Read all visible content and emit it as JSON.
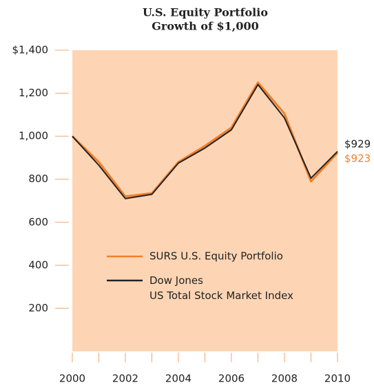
{
  "chart_data": {
    "type": "line",
    "title": "U.S. Equity Portfolio",
    "subtitle": "Growth of $1,000",
    "x": [
      2000,
      2001,
      2002,
      2003,
      2004,
      2005,
      2006,
      2007,
      2008,
      2009,
      2010
    ],
    "series": [
      {
        "name": "SURS U.S. Equity Portfolio",
        "color": "#f07f2a",
        "values": [
          1000,
          880,
          720,
          735,
          880,
          955,
          1040,
          1250,
          1105,
          790,
          923
        ],
        "value_labels": [
          null,
          null,
          null,
          null,
          null,
          null,
          null,
          null,
          null,
          null,
          "$923"
        ]
      },
      {
        "name": "Dow Jones\nUS Total Stock Market Index",
        "color": "#222222",
        "values": [
          1000,
          865,
          710,
          730,
          875,
          945,
          1030,
          1240,
          1085,
          805,
          929
        ],
        "value_labels": [
          null,
          null,
          null,
          null,
          null,
          null,
          null,
          null,
          null,
          null,
          "$929"
        ]
      }
    ],
    "xlim": [
      2000,
      2010
    ],
    "xticks": [
      2000,
      2002,
      2004,
      2006,
      2008,
      2010
    ],
    "xticks_minor": [
      2001,
      2003,
      2005,
      2007,
      2009
    ],
    "ylim": [
      0,
      1400
    ],
    "yticks": [
      200,
      400,
      600,
      800,
      {
        "value": 1000,
        "label": "1,000"
      },
      {
        "value": 1200,
        "label": "1,200"
      },
      {
        "value": 1400,
        "label": "$1,400"
      }
    ],
    "background": "#fdd5b5",
    "tick_color": "#f3a56a",
    "grid": false
  }
}
